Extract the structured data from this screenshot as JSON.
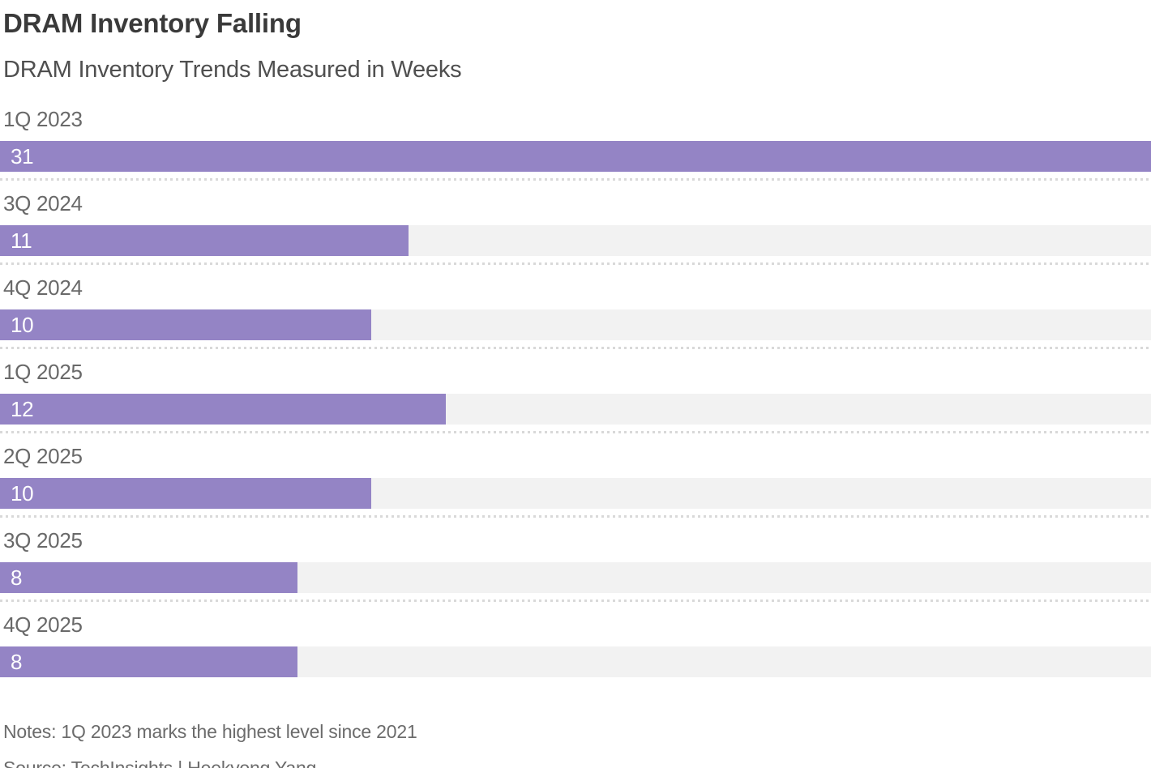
{
  "header": {
    "title": "DRAM Inventory Falling",
    "subtitle": "DRAM Inventory Trends Measured in Weeks"
  },
  "chart_data": {
    "type": "bar",
    "orientation": "horizontal",
    "categories": [
      "1Q 2023",
      "3Q 2024",
      "4Q 2024",
      "1Q 2025",
      "2Q 2025",
      "3Q 2025",
      "4Q 2025"
    ],
    "values": [
      31,
      11,
      10,
      12,
      10,
      8,
      8
    ],
    "title": "DRAM Inventory Falling",
    "subtitle": "DRAM Inventory Trends Measured in Weeks",
    "unit": "weeks",
    "xlim": [
      0,
      31
    ],
    "value_labels_shown": true,
    "grid": false,
    "legend": false,
    "bar_color": "#9484c5",
    "track_color": "#f2f2f2"
  },
  "footer": {
    "notes": "Notes: 1Q 2023 marks the highest level since 2021",
    "source": "Source: TechInsights | Heekyong Yang"
  }
}
